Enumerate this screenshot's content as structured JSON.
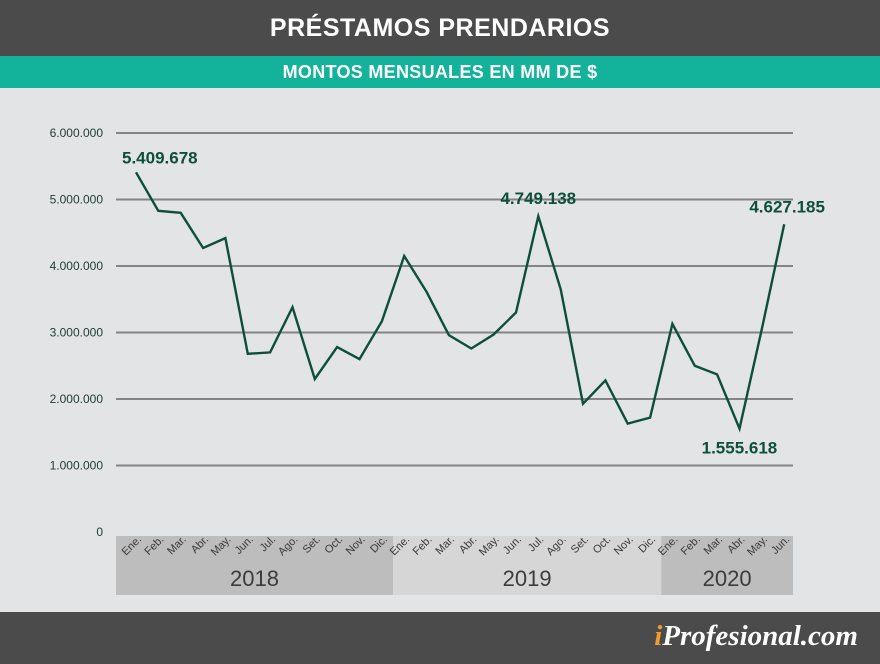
{
  "header": {
    "title": "PRÉSTAMOS PRENDARIOS",
    "subtitle": "MONTOS MENSUALES EN MM DE $"
  },
  "footer": {
    "brand_initial": "i",
    "brand_rest": "Profesional.com"
  },
  "colors": {
    "title_bar": "#4b4b4b",
    "subtitle_bar": "#12b29b",
    "line": "#0e4f3b",
    "grid": "#858585",
    "year_band_dark": "#bdbdbd",
    "year_band_light": "#d6d6d6",
    "brand_accent": "#f29a2e"
  },
  "chart_data": {
    "type": "line",
    "title": "PRÉSTAMOS PRENDARIOS",
    "subtitle": "MONTOS MENSUALES EN MM DE $",
    "xlabel": "",
    "ylabel": "",
    "ylim": [
      0,
      6000000
    ],
    "y_ticks": [
      {
        "value": 0,
        "label": "0"
      },
      {
        "value": 1000000,
        "label": "1.000.000"
      },
      {
        "value": 2000000,
        "label": "2.000.000"
      },
      {
        "value": 3000000,
        "label": "3.000.000"
      },
      {
        "value": 4000000,
        "label": "4.000.000"
      },
      {
        "value": 5000000,
        "label": "5.000.000"
      },
      {
        "value": 6000000,
        "label": "6.000.000"
      }
    ],
    "grid": true,
    "categories": [
      "Ene.",
      "Feb.",
      "Mar.",
      "Abr.",
      "May.",
      "Jun.",
      "Jul.",
      "Ago.",
      "Set.",
      "Oct.",
      "Nov.",
      "Dic.",
      "Ene.",
      "Feb.",
      "Mar.",
      "Abr.",
      "May.",
      "Jun.",
      "Jul.",
      "Ago.",
      "Set.",
      "Oct.",
      "Nov.",
      "Dic.",
      "Ene.",
      "Feb.",
      "Mar.",
      "Abr.",
      "May.",
      "Jun."
    ],
    "years": [
      {
        "label": "2018",
        "start": 0,
        "end": 11
      },
      {
        "label": "2019",
        "start": 12,
        "end": 23
      },
      {
        "label": "2020",
        "start": 24,
        "end": 29
      }
    ],
    "series": [
      {
        "values": [
          5409678,
          4830000,
          4800000,
          4270000,
          4420000,
          2680000,
          2700000,
          3380000,
          2300000,
          2780000,
          2600000,
          3170000,
          4150000,
          3610000,
          2960000,
          2760000,
          2970000,
          3300000,
          4749138,
          3650000,
          1930000,
          2280000,
          1630000,
          1720000,
          3130000,
          2500000,
          2370000,
          1555618,
          3050000,
          4627185
        ]
      }
    ],
    "annotations": [
      {
        "index": 0,
        "label": "5.409.678",
        "position": "above-right"
      },
      {
        "index": 18,
        "label": "4.749.138",
        "position": "above"
      },
      {
        "index": 27,
        "label": "1.555.618",
        "position": "below"
      },
      {
        "index": 29,
        "label": "4.627.185",
        "position": "above"
      }
    ]
  }
}
